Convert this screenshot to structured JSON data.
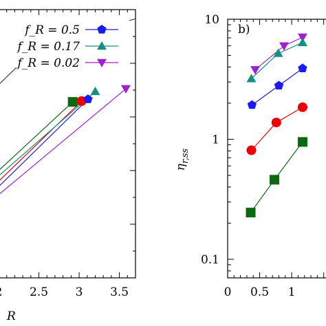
{
  "chart_data": [
    {
      "type": "line",
      "panel": "left",
      "xlabel": "R",
      "ylabel": "",
      "xlim": [
        2.0,
        3.7
      ],
      "x_ticks": [
        "2",
        "2.5",
        "3",
        "3.5"
      ],
      "legend": {
        "placement": "top-left",
        "entries": [
          {
            "label": "f_R = 0.5",
            "marker": "pentagon",
            "color": "#1a1aee",
            "line_color": "#1a1aee"
          },
          {
            "label": "f_R = 0.17",
            "marker": "triangle-up",
            "color": "#178f80",
            "line_color": "#178f80"
          },
          {
            "label": "f_R = 0.02",
            "marker": "triangle-down",
            "color": "#a020d0",
            "line_color": "#a020d0"
          }
        ]
      },
      "series": [
        {
          "marker": "diamond",
          "color": "#000000",
          "line_color": "#444444",
          "x": [
            2.0,
            2.48,
            3.7
          ],
          "y": [
            0.72,
            0.86,
            0.966
          ]
        },
        {
          "marker": "square",
          "color": "#0b6a10",
          "line_color": "#0b6a10",
          "x": [
            2.0,
            2.92
          ],
          "y": [
            0.4,
            0.656
          ]
        },
        {
          "marker": "circle",
          "color": "#ee0000",
          "line_color": "#ee0000",
          "x": [
            2.0,
            3.03
          ],
          "y": [
            0.36,
            0.659
          ]
        },
        {
          "marker": "pentagon",
          "color": "#1a1aee",
          "line_color": "#1a1aee",
          "x": [
            2.0,
            3.11
          ],
          "y": [
            0.34,
            0.666
          ]
        },
        {
          "marker": "triangle-up",
          "color": "#178f80",
          "line_color": "#178f80",
          "x": [
            2.0,
            3.2
          ],
          "y": [
            0.38,
            0.695
          ]
        },
        {
          "marker": "triangle-down",
          "color": "#a020d0",
          "line_color": "#a020d0",
          "x": [
            2.0,
            3.58
          ],
          "y": [
            0.31,
            0.705
          ]
        }
      ]
    },
    {
      "type": "line",
      "panel": "right",
      "annotation": "b)",
      "ylabel": "η_{r,ss}",
      "ylim": [
        0.07,
        10
      ],
      "yscale": "log",
      "y_ticks": [
        "10",
        "1",
        "0.1"
      ],
      "x_ticks": [
        "0",
        "0.5",
        "1"
      ],
      "series": [
        {
          "marker": "triangle-down",
          "color": "#a020d0",
          "line_color": "#a020d0",
          "x": [
            0.43,
            0.88,
            1.17
          ],
          "y": [
            3.8,
            6.0,
            7.1
          ]
        },
        {
          "marker": "triangle-up",
          "color": "#178f80",
          "line_color": "#178f80",
          "x": [
            0.37,
            0.79,
            1.17
          ],
          "y": [
            3.2,
            5.2,
            6.4
          ]
        },
        {
          "marker": "pentagon",
          "color": "#1a1aee",
          "line_color": "#1a1aee",
          "x": [
            0.38,
            0.8,
            1.17
          ],
          "y": [
            1.93,
            2.8,
            3.9
          ]
        },
        {
          "marker": "circle",
          "color": "#ee0000",
          "line_color": "#ee0000",
          "x": [
            0.37,
            0.76,
            1.17
          ],
          "y": [
            0.81,
            1.38,
            1.85
          ]
        },
        {
          "marker": "square",
          "color": "#0b6a10",
          "line_color": "#0b6a10",
          "x": [
            0.36,
            0.73,
            1.17
          ],
          "y": [
            0.245,
            0.46,
            0.95
          ]
        }
      ]
    }
  ]
}
